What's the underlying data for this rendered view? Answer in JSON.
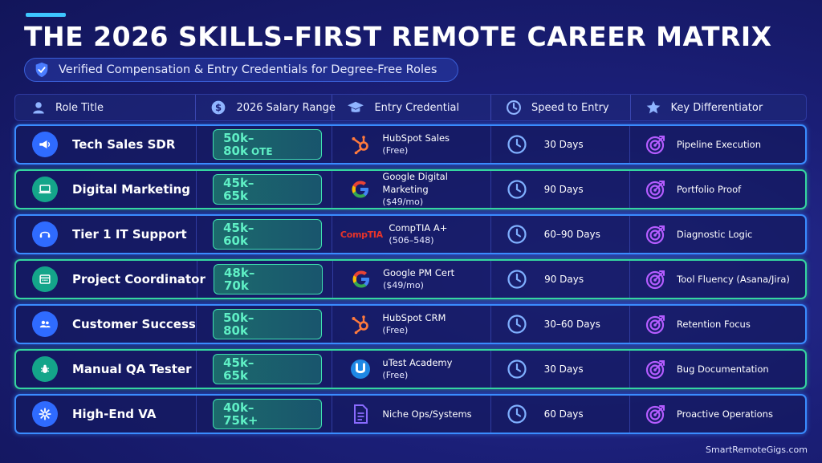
{
  "title": "THE 2026 SKILLS-FIRST REMOTE CAREER MATRIX",
  "subtitle": "Verified Compensation & Entry Credentials for Degree-Free Roles",
  "headers": {
    "role": "Role Title",
    "salary": "2026 Salary Range",
    "credential": "Entry Credential",
    "speed": "Speed to Entry",
    "differentiator": "Key Differentiator"
  },
  "rows": [
    {
      "role": "Tech Sales SDR",
      "role_icon": "megaphone-icon",
      "salary_line1": "50k–",
      "salary_line2": "80k",
      "salary_suffix": "OTE",
      "cred_icon": "hubspot-icon",
      "credential": "HubSpot Sales",
      "cred_cost": "(Free)",
      "speed": "30 Days",
      "differentiator": "Pipeline Execution",
      "border": "blue"
    },
    {
      "role": "Digital Marketing",
      "role_icon": "laptop-icon",
      "salary_line1": "45k–",
      "salary_line2": "65k",
      "salary_suffix": "",
      "cred_icon": "google-icon",
      "credential": "Google Digital Marketing",
      "cred_cost": "($49/mo)",
      "speed": "90 Days",
      "differentiator": "Portfolio Proof",
      "border": "green"
    },
    {
      "role": "Tier 1 IT Support",
      "role_icon": "headset-icon",
      "salary_line1": "45k–",
      "salary_line2": "60k",
      "salary_suffix": "",
      "cred_icon": "comptia-icon",
      "cred_logo_text": "CompTIA",
      "credential": "CompTIA A+",
      "cred_cost": "(506–548)",
      "speed": "60–90 Days",
      "differentiator": "Diagnostic Logic",
      "border": "blue"
    },
    {
      "role": "Project Coordinator",
      "role_icon": "calendar-icon",
      "salary_line1": "48k–",
      "salary_line2": "70k",
      "salary_suffix": "",
      "cred_icon": "google-icon",
      "credential": "Google PM Cert",
      "cred_cost": "($49/mo)",
      "speed": "90 Days",
      "differentiator": "Tool Fluency (Asana/Jira)",
      "border": "green"
    },
    {
      "role": "Customer Success",
      "role_icon": "users-icon",
      "salary_line1": "50k–",
      "salary_line2": "80k",
      "salary_suffix": "",
      "cred_icon": "hubspot-icon",
      "credential": "HubSpot CRM",
      "cred_cost": "(Free)",
      "speed": "30–60 Days",
      "differentiator": "Retention Focus",
      "border": "blue"
    },
    {
      "role": "Manual QA Tester",
      "role_icon": "bug-icon",
      "salary_line1": "45k–",
      "salary_line2": "65k",
      "salary_suffix": "",
      "cred_icon": "utest-icon",
      "credential": "uTest Academy",
      "cred_cost": "(Free)",
      "speed": "30 Days",
      "differentiator": "Bug Documentation",
      "border": "green"
    },
    {
      "role": "High-End VA",
      "role_icon": "gear-icon",
      "salary_line1": "40k–",
      "salary_line2": "75k+",
      "salary_suffix": "",
      "cred_icon": "document-icon",
      "credential": "Niche Ops/Systems",
      "cred_cost": "",
      "speed": "60 Days",
      "differentiator": "Proactive Operations",
      "border": "blue"
    }
  ],
  "footer": "SmartRemoteGigs.com",
  "colors": {
    "background": "#1b1f78",
    "blue_border": "#3a8cff",
    "green_border": "#35d6a0",
    "salary_text": "#5ff0c5",
    "icon_purple": "#b45cff"
  }
}
